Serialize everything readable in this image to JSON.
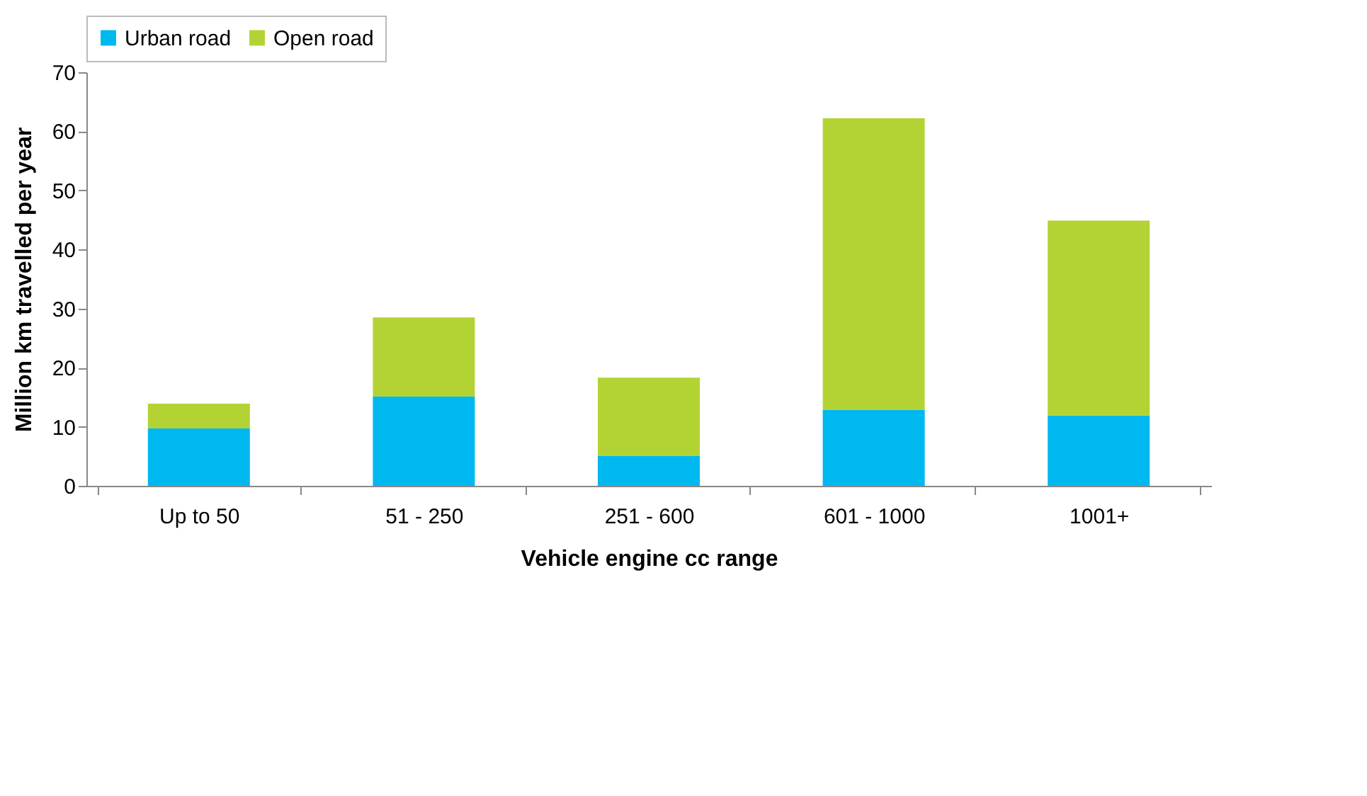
{
  "chart_data": {
    "type": "bar",
    "stacked": true,
    "xlabel": "Vehicle engine cc range",
    "ylabel": "Million km travelled per year",
    "categories": [
      "Up to 50",
      "51 - 250",
      "251 - 600",
      "601 - 1000",
      "1001+"
    ],
    "series": [
      {
        "name": "Urban road",
        "color": "#00b8f0",
        "values": [
          9.7,
          15.1,
          5.1,
          12.9,
          11.9
        ]
      },
      {
        "name": "Open road",
        "color": "#b3d334",
        "values": [
          4.2,
          13.4,
          13.2,
          49.3,
          33.0
        ]
      }
    ],
    "ylim": [
      0,
      70
    ],
    "yticks": [
      0,
      10,
      20,
      30,
      40,
      50,
      60,
      70
    ],
    "grid": false,
    "legend": "top"
  }
}
